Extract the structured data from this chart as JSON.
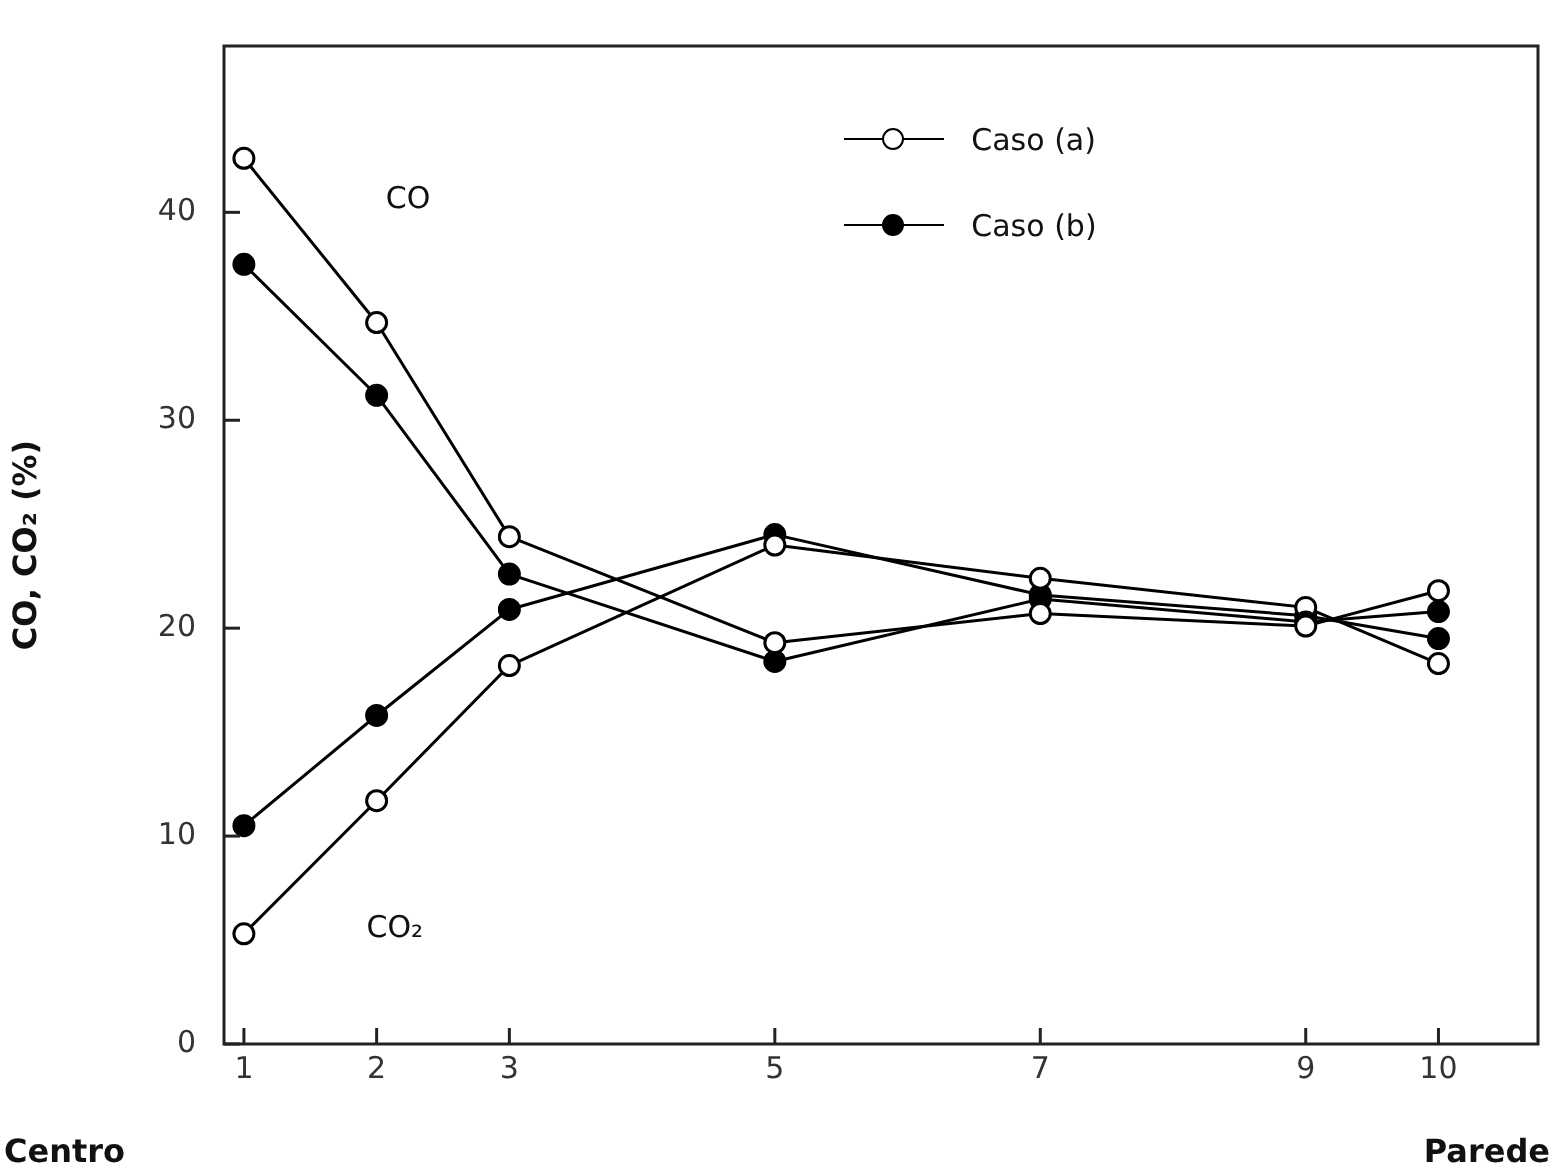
{
  "chart_data": {
    "type": "line",
    "ylabel": "CO, CO₂ (%)",
    "xlim": [
      0.85,
      10.75
    ],
    "xticks": [
      1,
      2,
      3,
      5,
      7,
      9,
      10
    ],
    "ylim": [
      0,
      48
    ],
    "yticks": [
      0,
      10,
      20,
      30,
      40
    ],
    "grid": false,
    "legend": "top",
    "marker": "circle",
    "line_style": "solid",
    "x": [
      1,
      2,
      3,
      5,
      7,
      9,
      10
    ],
    "series": [
      {
        "name": "Caso (a)",
        "color": "#000000",
        "values": [
          42.6,
          34.7,
          24.4,
          19.3,
          20.7,
          20.1,
          21.8
        ]
      },
      {
        "name": "Caso (b)",
        "color": "#000000",
        "values": [
          37.5,
          31.2,
          22.6,
          18.4,
          21.4,
          20.3,
          20.8
        ]
      },
      {
        "color": "#000000",
        "values": [
          5.3,
          11.7,
          18.2,
          24.0,
          22.4,
          21.0,
          18.3
        ]
      },
      {
        "color": "#000000",
        "values": [
          10.5,
          15.8,
          20.9,
          24.5,
          21.6,
          20.6,
          19.5
        ]
      }
    ],
    "annotations": [
      "CO",
      "CO₂",
      "Centro",
      "Parede"
    ]
  }
}
